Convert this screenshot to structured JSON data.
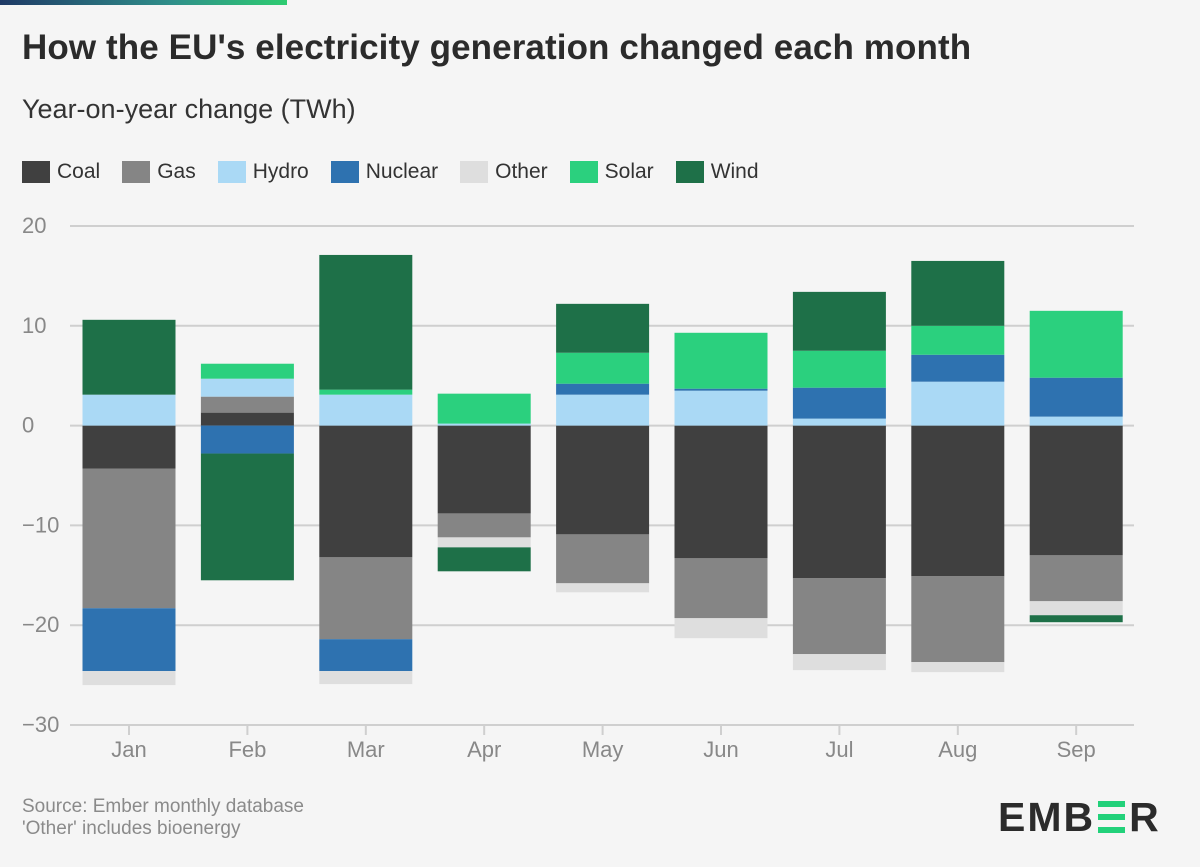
{
  "header": {
    "title": "How the EU's electricity generation changed each month",
    "subtitle": "Year-on-year change (TWh)"
  },
  "footer": {
    "source_line1": "Source: Ember monthly database",
    "source_line2": "'Other' includes bioenergy",
    "logo_left": "EMB",
    "logo_right": "R",
    "logo_text": "EMBER"
  },
  "colors": {
    "Coal": "#404040",
    "Gas": "#858585",
    "Hydro": "#aad9f5",
    "Nuclear": "#2e72b0",
    "Other": "#dedede",
    "Solar": "#2bd07e",
    "Wind": "#1e7048",
    "grid": "#cfcfcf",
    "background": "#f5f5f5"
  },
  "chart_data": {
    "type": "bar",
    "stacked": true,
    "title": "How the EU's electricity generation changed each month",
    "subtitle": "Year-on-year change (TWh)",
    "categories": [
      "Jan",
      "Feb",
      "Mar",
      "Apr",
      "May",
      "Jun",
      "Jul",
      "Aug",
      "Sep"
    ],
    "yticks": [
      20,
      10,
      0,
      -10,
      -20,
      -30
    ],
    "ylim": [
      -30,
      20
    ],
    "legend_position": "top-left",
    "series": [
      {
        "name": "Coal",
        "values": [
          -4.3,
          1.3,
          -13.2,
          -8.8,
          -10.9,
          -13.3,
          -15.3,
          -15.1,
          -13.0
        ]
      },
      {
        "name": "Gas",
        "values": [
          -14.0,
          1.6,
          -8.2,
          -2.4,
          -4.9,
          -6.0,
          -7.6,
          -8.6,
          -4.6
        ]
      },
      {
        "name": "Hydro",
        "values": [
          3.1,
          1.8,
          3.1,
          0.2,
          3.1,
          3.5,
          0.7,
          4.4,
          0.9
        ]
      },
      {
        "name": "Nuclear",
        "values": [
          -6.3,
          -2.8,
          -3.2,
          0,
          1.1,
          0.2,
          3.1,
          2.7,
          3.9
        ]
      },
      {
        "name": "Other",
        "values": [
          -1.4,
          0,
          -1.3,
          -1.0,
          -0.9,
          -2.0,
          -1.6,
          -1.0,
          -1.4
        ]
      },
      {
        "name": "Solar",
        "values": [
          0,
          1.5,
          0.5,
          3.0,
          3.1,
          5.6,
          3.7,
          2.9,
          6.7
        ]
      },
      {
        "name": "Wind",
        "values": [
          7.5,
          -12.7,
          13.5,
          -2.4,
          4.9,
          0,
          5.9,
          6.5,
          -0.7
        ]
      }
    ]
  }
}
